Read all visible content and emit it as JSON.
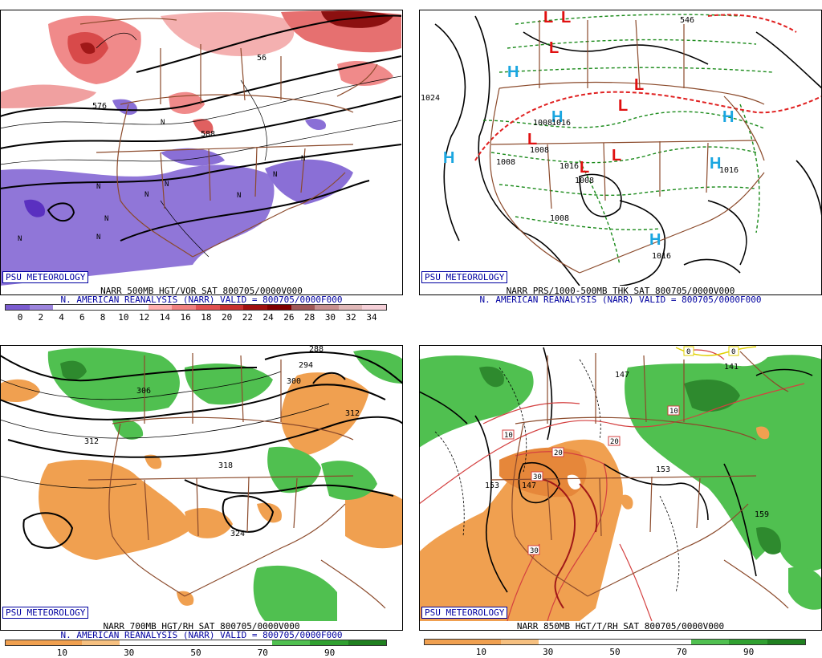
{
  "badge": "PSU METEOROLOGY",
  "panels": [
    {
      "title": "NARR 500MB HGT/VOR SAT 800705/0000V000",
      "subtitle": "N. AMERICAN REANALYSIS (NARR) VALID = 800705/0000F000",
      "colorbar": {
        "colors": [
          "#7b5cd0",
          "#9d85de",
          "#ffffff",
          "#ffffff",
          "#ffffff",
          "#ffffff",
          "#ffb0b0",
          "#f08080",
          "#e05050",
          "#c83030",
          "#a01010",
          "#800000",
          "#a05858",
          "#c89090",
          "#e0b8b8",
          "#f5d0d8"
        ],
        "labels": [
          "0",
          "2",
          "4",
          "6",
          "8",
          "10",
          "12",
          "14",
          "16",
          "18",
          "20",
          "22",
          "24",
          "26",
          "28",
          "30",
          "32",
          "34"
        ]
      },
      "contour_labels": [
        "576",
        "56",
        "588"
      ]
    },
    {
      "title": "NARR PRS/1000-500MB THK SAT 800705/0000V000",
      "subtitle": "N. AMERICAN REANALYSIS (NARR) VALID = 800705/0000F000",
      "colorbar": null,
      "contour_labels": [
        "1024",
        "1008",
        "1016",
        "1008",
        "1008",
        "1008",
        "1008",
        "1016",
        "1016",
        "1016",
        "546"
      ]
    },
    {
      "title": "NARR 700MB HGT/RH SAT 800705/0000V000",
      "subtitle": "N. AMERICAN REANALYSIS (NARR) VALID = 800705/0000F000",
      "colorbar": {
        "colors": [
          "#f0a050",
          "#f0a050",
          "#f6c080",
          "#ffffff",
          "#ffffff",
          "#ffffff",
          "#ffffff",
          "#50c050",
          "#30a030",
          "#208020"
        ],
        "labels": [
          "10",
          "30",
          "50",
          "70",
          "90"
        ]
      },
      "contour_labels": [
        "306",
        "312",
        "300",
        "294",
        "288",
        "312",
        "318",
        "324"
      ]
    },
    {
      "title": "NARR 850MB HGT/T/RH SAT 800705/0000V000",
      "subtitle": "",
      "colorbar": {
        "colors": [
          "#f0a050",
          "#f0a050",
          "#f6c080",
          "#ffffff",
          "#ffffff",
          "#ffffff",
          "#ffffff",
          "#50c050",
          "#30a030",
          "#208020"
        ],
        "labels": [
          "10",
          "30",
          "50",
          "70",
          "90"
        ]
      },
      "contour_labels": [
        "147",
        "141",
        "153",
        "159",
        "153",
        "147"
      ],
      "temp_labels": [
        "10",
        "20",
        "20",
        "30",
        "30",
        "10",
        "0",
        "0"
      ]
    }
  ],
  "pressure_centers": {
    "low": "L",
    "high": "H"
  }
}
